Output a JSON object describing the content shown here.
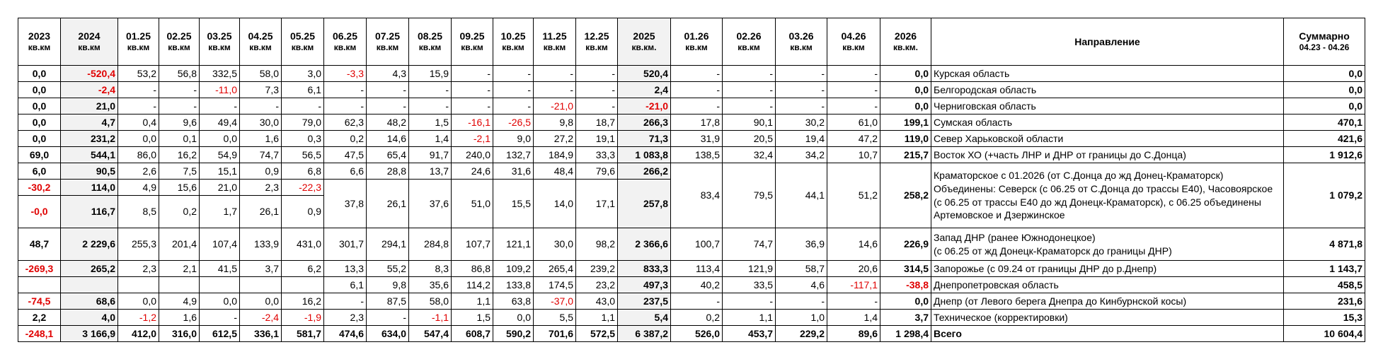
{
  "table": {
    "header": [
      {
        "title": "2023",
        "unit": "кв.км"
      },
      {
        "title": "2024",
        "unit": "кв.км"
      },
      {
        "title": "01.25",
        "unit": "кв.км"
      },
      {
        "title": "02.25",
        "unit": "кв.км"
      },
      {
        "title": "03.25",
        "unit": "кв.км"
      },
      {
        "title": "04.25",
        "unit": "кв.км"
      },
      {
        "title": "05.25",
        "unit": "кв.км"
      },
      {
        "title": "06.25",
        "unit": "кв.км"
      },
      {
        "title": "07.25",
        "unit": "кв.км"
      },
      {
        "title": "08.25",
        "unit": "кв.км"
      },
      {
        "title": "09.25",
        "unit": "кв.км"
      },
      {
        "title": "10.25",
        "unit": "кв.км"
      },
      {
        "title": "11.25",
        "unit": "кв.км"
      },
      {
        "title": "12.25",
        "unit": "кв.км"
      },
      {
        "title": "2025",
        "unit": "кв.км."
      },
      {
        "title": "01.26",
        "unit": "кв.км"
      },
      {
        "title": "02.26",
        "unit": "кв.км"
      },
      {
        "title": "03.26",
        "unit": "кв.км"
      },
      {
        "title": "04.26",
        "unit": "кв.км"
      },
      {
        "title": "2026",
        "unit": "кв.км."
      },
      {
        "title": "Направление"
      },
      {
        "title": "Суммарно",
        "unit": "04.23 - 04.26"
      }
    ],
    "rows": [
      [
        "0,0",
        "-520,4",
        "53,2",
        "56,8",
        "332,5",
        "58,0",
        "3,0",
        "-3,3",
        "4,3",
        "15,9",
        "-",
        "-",
        "-",
        "-",
        "520,4",
        "-",
        "-",
        "-",
        "-",
        "0,0",
        "Курская область",
        "0,0"
      ],
      [
        "0,0",
        "-2,4",
        "-",
        "-",
        "-11,0",
        "7,3",
        "6,1",
        "-",
        "-",
        "-",
        "-",
        "-",
        "-",
        "-",
        "2,4",
        "-",
        "-",
        "-",
        "-",
        "0,0",
        "Белгородская область",
        "0,0"
      ],
      [
        "0,0",
        "21,0",
        "-",
        "-",
        "-",
        "-",
        "-",
        "-",
        "-",
        "-",
        "-",
        "-",
        "-21,0",
        "-",
        "-21,0",
        "-",
        "-",
        "-",
        "-",
        "0,0",
        "Черниговская область",
        "0,0"
      ],
      [
        "0,0",
        "4,7",
        "0,4",
        "9,6",
        "49,4",
        "30,0",
        "79,0",
        "62,3",
        "48,2",
        "1,5",
        "-16,1",
        "-26,5",
        "9,8",
        "18,7",
        "266,3",
        "17,8",
        "90,1",
        "30,2",
        "61,0",
        "199,1",
        "Сумская область",
        "470,1"
      ],
      [
        "0,0",
        "231,2",
        "0,0",
        "0,1",
        "0,0",
        "1,6",
        "0,3",
        "0,2",
        "14,6",
        "1,4",
        "-2,1",
        "9,0",
        "27,2",
        "19,1",
        "71,3",
        "31,9",
        "20,5",
        "19,4",
        "47,2",
        "119,0",
        "Север Харьковской области",
        "421,6"
      ],
      [
        "69,0",
        "544,1",
        "86,0",
        "16,2",
        "54,9",
        "74,7",
        "56,5",
        "47,5",
        "65,4",
        "91,7",
        "240,0",
        "132,7",
        "184,9",
        "33,3",
        "1 083,8",
        "138,5",
        "32,4",
        "34,2",
        "10,7",
        "215,7",
        "Восток ХО (+часть ЛНР и ДНР от границы до С.Донца)",
        "1 912,6"
      ],
      [
        "6,0",
        "90,5",
        "2,6",
        "7,5",
        "15,1",
        "0,9",
        "6,8",
        "6,6",
        "28,8",
        "13,7",
        "24,6",
        "31,6",
        "48,4",
        "79,6",
        "266,2",
        "83,4",
        "79,5",
        "44,1",
        "51,2",
        "258,2",
        "Краматорское с 01.2026 (от С.Донца до жд Донец-Краматорск)\nОбъединены: Северск (с 06.25 от С.Донца до трассы Е40), Часовоярское (с 06.25 от трассы Е40 до жд Донецк-Краматорск), с 06.25 объединены Артемовское и Дзержинское",
        "1 079,2"
      ],
      [
        "-30,2",
        "114,0",
        "4,9",
        "15,6",
        "21,0",
        "2,3",
        "-22,3",
        "37,8",
        "26,1",
        "37,6",
        "51,0",
        "15,5",
        "14,0",
        "17,1",
        "257,8"
      ],
      [
        "-0,0",
        "116,7",
        "8,5",
        "0,2",
        "1,7",
        "26,1",
        "0,9"
      ],
      [
        "48,7",
        "2 229,6",
        "255,3",
        "201,4",
        "107,4",
        "133,9",
        "431,0",
        "301,7",
        "294,1",
        "284,8",
        "107,7",
        "121,1",
        "30,0",
        "98,2",
        "2 366,6",
        "100,7",
        "74,7",
        "36,9",
        "14,6",
        "226,9",
        "Запад ДНР (ранее Южнодонецкое)\n(с 06.25 от жд Донецк-Краматорск до границы ДНР)",
        "4 871,8"
      ],
      [
        "-269,3",
        "265,2",
        "2,3",
        "2,1",
        "41,5",
        "3,7",
        "6,2",
        "13,3",
        "55,2",
        "8,3",
        "86,8",
        "109,2",
        "265,4",
        "239,2",
        "833,3",
        "113,4",
        "121,9",
        "58,7",
        "20,6",
        "314,5",
        "Запорожье (с 09.24 от границы ДНР до р.Днепр)",
        "1 143,7"
      ],
      [
        null,
        null,
        null,
        null,
        null,
        null,
        null,
        "6,1",
        "9,8",
        "35,6",
        "114,2",
        "133,8",
        "174,5",
        "23,2",
        "497,3",
        "40,2",
        "33,5",
        "4,6",
        "-117,1",
        "-38,8",
        "Днепропетровская область",
        "458,5"
      ],
      [
        "-74,5",
        "68,6",
        "0,0",
        "4,9",
        "0,0",
        "0,0",
        "16,2",
        "-",
        "87,5",
        "58,0",
        "1,1",
        "63,8",
        "-37,0",
        "43,0",
        "237,5",
        "-",
        "-",
        "-",
        "-",
        "0,0",
        "Днепр (от Левого берега Днепра до Кинбурнской косы)",
        "231,6"
      ],
      [
        "2,2",
        "4,0",
        "-1,2",
        "1,6",
        "-",
        "-2,4",
        "-1,9",
        "2,3",
        "-",
        "-1,1",
        "1,5",
        "0,0",
        "5,5",
        "1,1",
        "5,4",
        "0,2",
        "1,1",
        "1,0",
        "1,4",
        "3,7",
        "Техническое (корректировки)",
        "15,3"
      ],
      [
        "-248,1",
        "3 166,9",
        "412,0",
        "316,0",
        "612,5",
        "336,1",
        "581,7",
        "474,6",
        "634,0",
        "547,4",
        "608,7",
        "590,2",
        "701,6",
        "572,5",
        "6 387,2",
        "526,0",
        "453,7",
        "229,2",
        "89,6",
        "1 298,4",
        "Всего",
        "10 604,4"
      ]
    ]
  }
}
